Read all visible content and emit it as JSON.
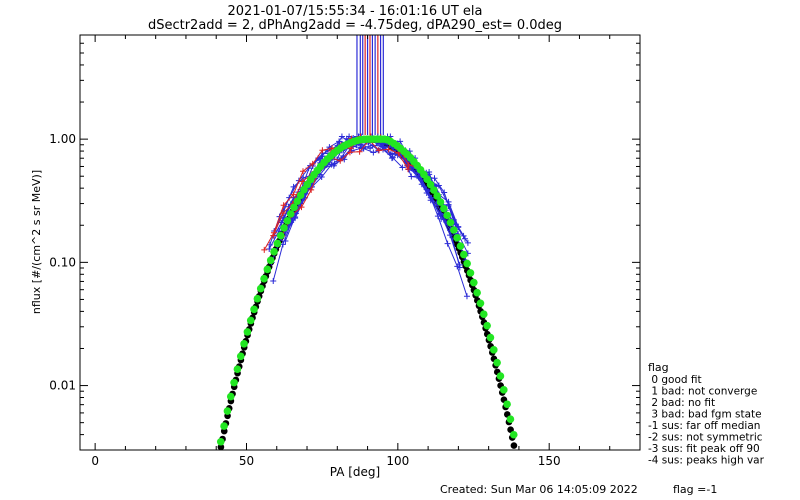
{
  "chart_data": {
    "type": "scatter",
    "title_line1": "2021-01-07/15:55:34 - 16:01:16 UT ela",
    "title_line2": "dSectr2add = 2, dPhAng2add = -4.75deg, dPA290_est=    0.0deg",
    "xlabel": "PA [deg]",
    "ylabel": "nflux [#/(cm^2 s sr MeV)]",
    "xlim": [
      -5,
      180
    ],
    "ylim": [
      0.003,
      7
    ],
    "yscale": "log",
    "x_ticks": [
      0,
      50,
      100,
      150
    ],
    "x_tick_labels": [
      "0",
      "50",
      "100",
      "150"
    ],
    "y_ticks": [
      0.01,
      0.1,
      1.0
    ],
    "y_tick_labels": [
      "0.01",
      "0.10",
      "1.00"
    ],
    "series": [
      {
        "name": "fit model",
        "color": "#000000",
        "style": "dots"
      },
      {
        "name": "fit",
        "color": "#22e622",
        "style": "dots"
      },
      {
        "color": "#2b2bd6",
        "style": "line+cross"
      },
      {
        "color": "#dd2222",
        "style": "line+cross"
      }
    ],
    "legend": {
      "title": "flag",
      "entries": [
        " 0 good fit",
        " 1 bad: not converge",
        " 2 bad: no fit",
        " 3 bad: bad fgm state",
        "-1 sus: far off median",
        "-2 sus: not symmetric",
        "-3 sus: fit peak off 90",
        "-4 sus: peaks high var"
      ]
    }
  },
  "footer": {
    "created": "Created: Sun Mar 06 14:05:09 2022",
    "flag": "flag =-1"
  },
  "colors": {
    "black_fit": "#000000",
    "green_fit": "#22e622",
    "blue": "#2b2bd6",
    "red": "#dd2222"
  }
}
